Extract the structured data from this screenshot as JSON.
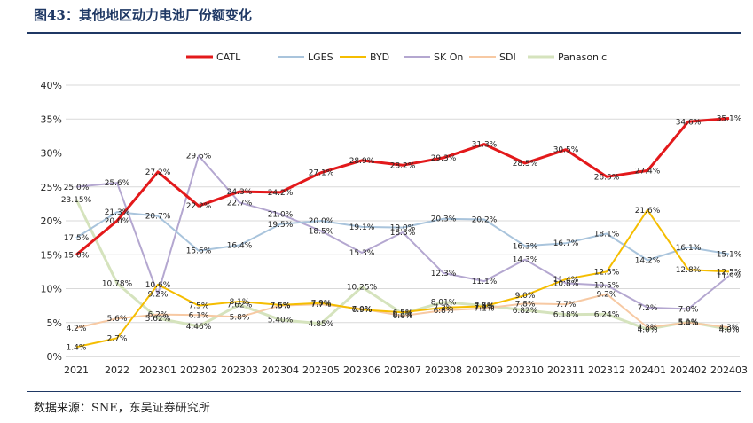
{
  "title": "图43：其他地区动力电池厂份额变化",
  "source": "数据来源：SNE，东吴证券研究所",
  "chart_data": {
    "type": "line",
    "categories": [
      "2021",
      "2022",
      "202301",
      "202302",
      "202303",
      "202304",
      "202305",
      "202306",
      "202307",
      "202308",
      "202309",
      "202310",
      "202311",
      "202312",
      "202401",
      "202402",
      "202403"
    ],
    "ylim": [
      0,
      40
    ],
    "yticks": [
      "0%",
      "5%",
      "10%",
      "15%",
      "20%",
      "25%",
      "30%",
      "35%",
      "40%"
    ],
    "grid": "horizontal",
    "legend": "top",
    "series": [
      {
        "name": "CATL",
        "color": "#e3191b",
        "width": 3,
        "values": [
          15.0,
          20.0,
          27.2,
          22.2,
          24.3,
          24.2,
          27.1,
          28.9,
          28.2,
          29.3,
          31.3,
          28.5,
          30.5,
          26.5,
          27.4,
          34.6,
          35.1
        ],
        "labels": [
          "15.0%",
          "20.0%",
          "27.2%",
          "22.2%",
          "24.3%",
          "24.2%",
          "27.1%",
          "28.9%",
          "28.2%",
          "29.3%",
          "31.3%",
          "28.5%",
          "30.5%",
          "26.5%",
          "27.4%",
          "34.6%",
          "35.1%"
        ]
      },
      {
        "name": "LGES",
        "color": "#a9c4dc",
        "width": 2,
        "values": [
          17.5,
          21.3,
          20.7,
          15.6,
          16.4,
          19.5,
          20.0,
          19.1,
          19.0,
          20.3,
          20.2,
          16.3,
          16.7,
          18.1,
          14.2,
          16.1,
          15.1
        ],
        "labels": [
          "17.5%",
          "21.3%",
          "20.7%",
          "15.6%",
          "16.4%",
          "19.5%",
          "20.0%",
          "19.1%",
          "19.0%",
          "20.3%",
          "20.2%",
          "16.3%",
          "16.7%",
          "18.1%",
          "14.2%",
          "16.1%",
          "15.1%"
        ]
      },
      {
        "name": "BYD",
        "color": "#f5bd00",
        "width": 2,
        "values": [
          1.4,
          2.7,
          10.6,
          7.5,
          8.1,
          7.6,
          7.9,
          6.9,
          6.5,
          7.2,
          7.4,
          9.0,
          11.4,
          12.5,
          21.6,
          12.8,
          12.5
        ],
        "labels": [
          "1.4%",
          "2.7%",
          "10.6%",
          "7.5%",
          "8.1%",
          "7.6%",
          "7.9%",
          "6.9%",
          "6.5%",
          "7.2%",
          "7.4%",
          "9.0%",
          "11.4%",
          "12.5%",
          "21.6%",
          "12.8%",
          "12.5%"
        ]
      },
      {
        "name": "SK On",
        "color": "#b4a7d0",
        "width": 2,
        "values": [
          25.0,
          25.6,
          9.2,
          29.6,
          22.7,
          21.0,
          18.5,
          15.3,
          18.3,
          12.3,
          11.1,
          14.3,
          10.8,
          10.5,
          7.2,
          7.0,
          11.9
        ],
        "labels": [
          "25.0%",
          "25.6%",
          "9.2%",
          "29.6%",
          "22.7%",
          "21.0%",
          "18.5%",
          "15.3%",
          "18.3%",
          "12.3%",
          "11.1%",
          "14.3%",
          "10.8%",
          "10.5%",
          "7.2%",
          "7.0%",
          "11.9%"
        ]
      },
      {
        "name": "SDI",
        "color": "#f7c9a3",
        "width": 2,
        "values": [
          4.2,
          5.6,
          6.2,
          6.1,
          5.8,
          7.5,
          7.7,
          7.0,
          6.0,
          6.8,
          7.1,
          7.8,
          7.7,
          9.2,
          4.3,
          5.0,
          4.3
        ],
        "labels": [
          "4.2%",
          "5.6%",
          "6.2%",
          "6.1%",
          "5.8%",
          "7.5%",
          "7.7%",
          "7.0%",
          "6.0%",
          "6.8%",
          "7.1%",
          "7.8%",
          "7.7%",
          "9.2%",
          "4.3%",
          "5.0%",
          "4.3%"
        ]
      },
      {
        "name": "Panasonic",
        "color": "#d5e3bd",
        "width": 3,
        "values": [
          23.15,
          10.78,
          5.62,
          4.46,
          7.62,
          5.4,
          4.85,
          10.25,
          6.3,
          8.01,
          7.5,
          6.82,
          6.18,
          6.24,
          4.0,
          5.1,
          4.0
        ],
        "labels": [
          "23.15%",
          "10.78%",
          "5.62%",
          "4.46%",
          "7.62%",
          "5.40%",
          "4.85%",
          "10.25%",
          "6.3%",
          "8.01%",
          "7.5%",
          "6.82%",
          "6.18%",
          "6.24%",
          "4.0%",
          "5.1%",
          "4.0%"
        ]
      }
    ]
  }
}
